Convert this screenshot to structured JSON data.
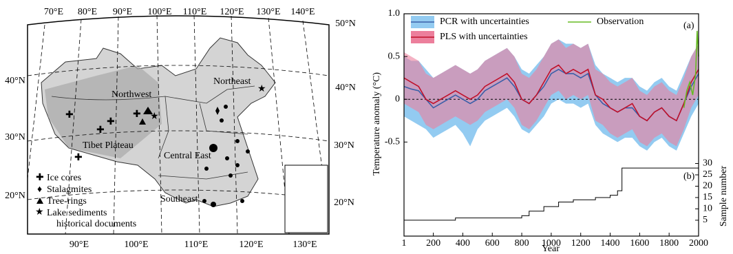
{
  "map": {
    "lon_top": [
      "70°E",
      "80°E",
      "90°E",
      "100°E",
      "110°E",
      "120°E",
      "130°E",
      "140°E"
    ],
    "lon_bottom": [
      "90°E",
      "100°E",
      "110°E",
      "120°E",
      "130°E"
    ],
    "lat_left": [
      "40°N",
      "30°N",
      "20°N"
    ],
    "lat_right": [
      "50°N",
      "40°N",
      "30°N",
      "20°N"
    ],
    "regions": [
      {
        "label": "Northwest",
        "color": "#8b1a1a"
      },
      {
        "label": "Northeast",
        "color": "#2b5aa8"
      },
      {
        "label": "Tibet Plateau",
        "color": "#2e7d1e"
      },
      {
        "label": "Central East",
        "color": "#e01818"
      },
      {
        "label": "Southeast",
        "color": "#b030b0"
      }
    ],
    "legend": [
      "Ice cores",
      "Stalagmites",
      "Tree-rings",
      "Lake sediments",
      "historical documents"
    ]
  },
  "chart_data": {
    "type": "line",
    "x": [
      1,
      50,
      100,
      150,
      200,
      250,
      300,
      350,
      400,
      450,
      500,
      550,
      600,
      650,
      700,
      750,
      800,
      850,
      900,
      950,
      1000,
      1050,
      1100,
      1150,
      1200,
      1250,
      1300,
      1350,
      1400,
      1450,
      1500,
      1550,
      1600,
      1650,
      1700,
      1750,
      1800,
      1850,
      1900,
      1950,
      2000
    ],
    "xlim": [
      1,
      2000
    ],
    "xticks": [
      1,
      200,
      400,
      600,
      800,
      1000,
      1200,
      1400,
      1600,
      1800,
      2000
    ],
    "ylim": [
      -1.6,
      1.0
    ],
    "yticks": [
      -0.5,
      0,
      0.5,
      {
        "value": 1,
        "label": "1.0"
      }
    ],
    "y2lim": [
      -2,
      96
    ],
    "y2ticks": [
      5,
      10,
      15,
      20,
      25,
      30
    ],
    "xlabel": "Year",
    "ylabel": "Temperature anomaly (°C)",
    "y2label": "Sample number",
    "annotations": [
      "(a)",
      "(b)"
    ],
    "series": [
      {
        "name": "PCR with uncertainties",
        "color": "#3a5fa8",
        "band_color": "#93cbf1",
        "values": [
          0.15,
          0.12,
          0.1,
          0.0,
          -0.1,
          -0.05,
          0.0,
          0.05,
          0.0,
          -0.05,
          0.0,
          0.1,
          0.15,
          0.2,
          0.25,
          0.15,
          0.0,
          -0.05,
          0.05,
          0.15,
          0.3,
          0.35,
          0.3,
          0.3,
          0.25,
          0.3,
          0.05,
          -0.05,
          -0.1,
          -0.15,
          -0.1,
          -0.1,
          -0.2,
          -0.25,
          -0.15,
          -0.1,
          -0.2,
          -0.25,
          -0.05,
          0.15,
          0.3
        ],
        "upper": [
          0.5,
          0.45,
          0.45,
          0.35,
          0.25,
          0.3,
          0.35,
          0.4,
          0.35,
          0.3,
          0.35,
          0.45,
          0.5,
          0.55,
          0.6,
          0.5,
          0.35,
          0.3,
          0.4,
          0.5,
          0.65,
          0.7,
          0.65,
          0.65,
          0.6,
          0.65,
          0.4,
          0.3,
          0.25,
          0.2,
          0.25,
          0.25,
          0.15,
          0.1,
          0.2,
          0.25,
          0.15,
          0.1,
          0.3,
          0.5,
          0.65
        ],
        "lower": [
          -0.2,
          -0.25,
          -0.3,
          -0.35,
          -0.45,
          -0.4,
          -0.35,
          -0.3,
          -0.4,
          -0.55,
          -0.35,
          -0.25,
          -0.2,
          -0.15,
          -0.1,
          -0.2,
          -0.35,
          -0.4,
          -0.3,
          -0.2,
          -0.05,
          0.0,
          -0.05,
          -0.05,
          -0.1,
          -0.05,
          -0.3,
          -0.4,
          -0.45,
          -0.5,
          -0.45,
          -0.45,
          -0.55,
          -0.6,
          -0.5,
          -0.45,
          -0.55,
          -0.6,
          -0.4,
          -0.2,
          -0.05
        ]
      },
      {
        "name": "PLS with uncertainties",
        "color": "#c0102a",
        "band_color": "#ec7f9c",
        "values": [
          0.25,
          0.2,
          0.15,
          0.0,
          -0.05,
          0.0,
          0.05,
          0.1,
          0.05,
          0.0,
          0.05,
          0.15,
          0.2,
          0.25,
          0.3,
          0.2,
          0.0,
          -0.05,
          0.05,
          0.2,
          0.35,
          0.4,
          0.3,
          0.35,
          0.3,
          0.35,
          0.05,
          0.0,
          -0.1,
          -0.15,
          -0.1,
          -0.05,
          -0.2,
          -0.25,
          -0.15,
          -0.1,
          -0.2,
          -0.25,
          -0.05,
          0.2,
          0.35
        ],
        "upper": [
          0.55,
          0.5,
          0.45,
          0.3,
          0.25,
          0.3,
          0.35,
          0.4,
          0.35,
          0.3,
          0.35,
          0.45,
          0.5,
          0.55,
          0.6,
          0.5,
          0.3,
          0.25,
          0.35,
          0.5,
          0.65,
          0.7,
          0.6,
          0.65,
          0.6,
          0.65,
          0.35,
          0.3,
          0.2,
          0.15,
          0.2,
          0.25,
          0.1,
          0.05,
          0.15,
          0.2,
          0.1,
          0.05,
          0.25,
          0.5,
          0.65
        ],
        "lower": [
          -0.05,
          -0.1,
          -0.15,
          -0.3,
          -0.35,
          -0.3,
          -0.25,
          -0.2,
          -0.25,
          -0.3,
          -0.25,
          -0.15,
          -0.1,
          -0.05,
          0.0,
          -0.1,
          -0.3,
          -0.35,
          -0.25,
          -0.1,
          0.05,
          0.1,
          0.0,
          0.05,
          0.0,
          0.05,
          -0.25,
          -0.3,
          -0.4,
          -0.45,
          -0.4,
          -0.35,
          -0.5,
          -0.55,
          -0.45,
          -0.4,
          -0.5,
          -0.55,
          -0.35,
          -0.1,
          0.05
        ]
      },
      {
        "name": "Observation",
        "color": "#66bb22",
        "x": [
          1900,
          1920,
          1940,
          1960,
          1980,
          1990,
          2000
        ],
        "values": [
          -0.1,
          0.1,
          0.2,
          0.05,
          0.3,
          0.8,
          0.5
        ]
      },
      {
        "axis": "y2",
        "color": "#000000",
        "x": [
          1,
          350,
          800,
          850,
          950,
          1050,
          1150,
          1300,
          1400,
          1450,
          1480,
          2000
        ],
        "values": [
          5,
          6,
          7,
          9,
          11,
          13,
          14,
          15,
          16,
          18,
          28,
          28
        ]
      }
    ]
  }
}
